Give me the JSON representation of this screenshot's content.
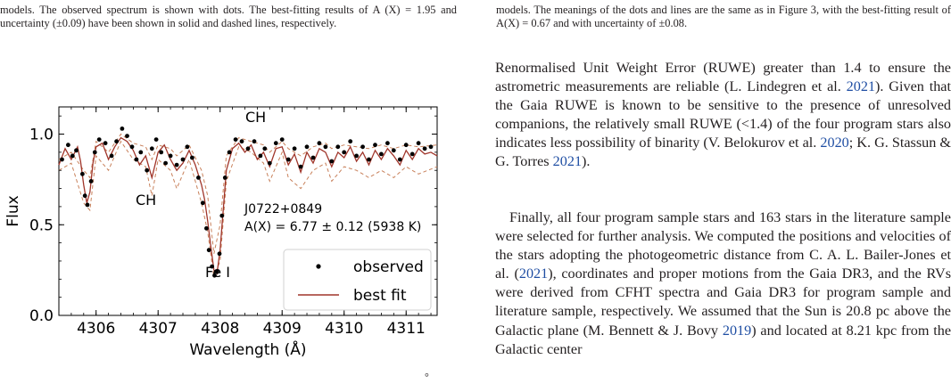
{
  "left_caption": "models. The observed spectrum is shown with dots. The best-fitting results of A (X) = 1.95 and uncertainty (±0.09) have been shown in solid and dashed lines, respectively.",
  "right_caption": "models. The meanings of the dots and lines are the same as in Figure 3, with the best-fitting result of A(X) = 0.67 and with uncertainty of ±0.08.",
  "paragraph1": {
    "t1": "Renormalised Unit Weight Error (RUWE) greater than 1.4 to ensure the astrometric measurements are reliable (L. Lindegren et al. ",
    "c1": "2021",
    "t2": "). Given that the Gaia RUWE is known to be sensitive to the presence of unresolved companions, the relatively small RUWE (<1.4) of the four program stars also indicates less possibility of binarity (V. Belokurov et al. ",
    "c2": "2020",
    "t3": "; K. G. Stassun & G. Torres ",
    "c3": "2021",
    "t4": ")."
  },
  "paragraph2": {
    "t1": "Finally, all four program sample stars and 163 stars in the literature sample were selected for further analysis. We computed the positions and velocities of the stars adopting the photogeometric distance from C. A. L. Bailer-Jones et al. (",
    "c1": "2021",
    "t2": "), coordinates and proper motions from the Gaia DR3, and the RVs were derived from CFHT spectra and Gaia DR3 for program sample and literature sample, respectively. We assumed that the Sun is 20.8 pc above the Galactic plane (M. Bennett & J. Bovy ",
    "c2": "2019",
    "t3": ") and located at 8.21 kpc from the Galactic center"
  },
  "stray_mark": "°",
  "chart_data": {
    "type": "line",
    "xlabel": "Wavelength (Å)",
    "ylabel": "Flux",
    "xlim": [
      4305.4,
      4311.5
    ],
    "ylim": [
      0.0,
      1.15
    ],
    "x_ticks": [
      "4306",
      "4307",
      "4308",
      "4309",
      "4310",
      "4311"
    ],
    "y_ticks": [
      "0.0",
      "0.5",
      "1.0"
    ],
    "grid": false,
    "legend_position": "bottom-right",
    "legend": [
      "observed",
      "best fit"
    ],
    "annotations": {
      "star": "J0722+0849",
      "abundance": "A(X) = 6.77 ± 0.12 (5938 K)",
      "label_ch_top": "CH",
      "label_ch_left": "CH",
      "label_fe": "Fe I"
    },
    "colors": {
      "observed": "#000000",
      "best_fit": "#a0352a",
      "uncertainty": "#c8805a"
    },
    "series": [
      {
        "name": "best fit",
        "x": [
          4305.4,
          4305.5,
          4305.6,
          4305.7,
          4305.75,
          4305.8,
          4305.85,
          4305.9,
          4305.95,
          4306.0,
          4306.1,
          4306.2,
          4306.3,
          4306.4,
          4306.5,
          4306.6,
          4306.7,
          4306.8,
          4306.9,
          4307.0,
          4307.1,
          4307.2,
          4307.3,
          4307.4,
          4307.5,
          4307.6,
          4307.7,
          4307.75,
          4307.8,
          4307.85,
          4307.9,
          4307.95,
          4308.0,
          4308.05,
          4308.1,
          4308.2,
          4308.3,
          4308.4,
          4308.5,
          4308.6,
          4308.7,
          4308.8,
          4308.9,
          4309.0,
          4309.1,
          4309.2,
          4309.3,
          4309.4,
          4309.5,
          4309.6,
          4309.7,
          4309.8,
          4309.9,
          4310.0,
          4310.1,
          4310.2,
          4310.3,
          4310.4,
          4310.5,
          4310.6,
          4310.7,
          4310.8,
          4310.9,
          4311.0,
          4311.1,
          4311.2,
          4311.3,
          4311.4,
          4311.5
        ],
        "y": [
          0.83,
          0.92,
          0.86,
          0.93,
          0.85,
          0.72,
          0.62,
          0.68,
          0.84,
          0.93,
          0.95,
          0.86,
          0.93,
          0.98,
          0.96,
          0.91,
          0.83,
          0.88,
          0.76,
          0.9,
          0.94,
          0.86,
          0.8,
          0.84,
          0.91,
          0.83,
          0.72,
          0.64,
          0.52,
          0.38,
          0.25,
          0.23,
          0.36,
          0.58,
          0.8,
          0.92,
          0.95,
          0.9,
          0.94,
          0.86,
          0.9,
          0.82,
          0.92,
          0.93,
          0.83,
          0.89,
          0.79,
          0.9,
          0.84,
          0.92,
          0.9,
          0.82,
          0.9,
          0.87,
          0.93,
          0.85,
          0.9,
          0.83,
          0.91,
          0.86,
          0.92,
          0.88,
          0.83,
          0.91,
          0.86,
          0.92,
          0.89,
          0.9,
          0.88
        ]
      },
      {
        "name": "observed",
        "x": [
          4305.45,
          4305.55,
          4305.62,
          4305.68,
          4305.78,
          4305.82,
          4305.86,
          4305.92,
          4305.98,
          4306.05,
          4306.15,
          4306.25,
          4306.33,
          4306.42,
          4306.5,
          4306.58,
          4306.65,
          4306.72,
          4306.82,
          4306.9,
          4306.97,
          4307.05,
          4307.12,
          4307.2,
          4307.3,
          4307.4,
          4307.47,
          4307.55,
          4307.65,
          4307.72,
          4307.78,
          4307.82,
          4307.87,
          4307.91,
          4307.95,
          4307.99,
          4308.03,
          4308.08,
          4308.15,
          4308.25,
          4308.35,
          4308.45,
          4308.55,
          4308.65,
          4308.72,
          4308.8,
          4308.9,
          4309.0,
          4309.1,
          4309.2,
          4309.3,
          4309.4,
          4309.5,
          4309.6,
          4309.7,
          4309.8,
          4309.9,
          4310.0,
          4310.1,
          4310.2,
          4310.3,
          4310.4,
          4310.5,
          4310.6,
          4310.7,
          4310.8,
          4310.9,
          4311.0,
          4311.1,
          4311.2,
          4311.3,
          4311.4
        ],
        "y": [
          0.86,
          0.94,
          0.88,
          0.91,
          0.78,
          0.66,
          0.61,
          0.74,
          0.9,
          0.97,
          0.95,
          0.88,
          0.96,
          1.03,
          0.99,
          0.93,
          0.86,
          0.9,
          0.8,
          0.92,
          0.97,
          0.9,
          0.84,
          0.88,
          0.83,
          0.86,
          0.93,
          0.87,
          0.76,
          0.62,
          0.48,
          0.36,
          0.27,
          0.22,
          0.24,
          0.34,
          0.55,
          0.76,
          0.9,
          0.97,
          0.96,
          0.92,
          0.96,
          0.88,
          0.92,
          0.84,
          0.95,
          0.97,
          0.86,
          0.92,
          0.82,
          0.93,
          0.87,
          0.95,
          0.93,
          0.85,
          0.93,
          0.9,
          0.96,
          0.88,
          0.93,
          0.86,
          0.94,
          0.89,
          0.95,
          0.91,
          0.86,
          0.94,
          0.89,
          0.95,
          0.92,
          0.93
        ]
      },
      {
        "name": "",
        "x": [
          4305.4,
          4305.6,
          4305.8,
          4305.9,
          4306.0,
          4306.2,
          4306.4,
          4306.6,
          4306.8,
          4306.9,
          4307.0,
          4307.2,
          4307.3,
          4307.5,
          4307.7,
          4307.8,
          4307.9,
          4308.0,
          4308.1,
          4308.3,
          4308.5,
          4308.7,
          4308.8,
          4309.0,
          4309.1,
          4309.3,
          4309.5,
          4309.7,
          4309.8,
          4310.0,
          4310.2,
          4310.4,
          4310.6,
          4310.8,
          4311.0,
          4311.2,
          4311.5
        ],
        "y": [
          0.8,
          0.84,
          0.62,
          0.58,
          0.88,
          0.8,
          0.96,
          0.86,
          0.82,
          0.66,
          0.86,
          0.8,
          0.7,
          0.86,
          0.62,
          0.46,
          0.21,
          0.3,
          0.74,
          0.93,
          0.9,
          0.84,
          0.74,
          0.9,
          0.76,
          0.7,
          0.8,
          0.84,
          0.74,
          0.82,
          0.8,
          0.76,
          0.8,
          0.76,
          0.82,
          0.78,
          0.82
        ]
      },
      {
        "name": "",
        "x": [
          4305.4,
          4305.6,
          4305.8,
          4305.9,
          4306.0,
          4306.2,
          4306.4,
          4306.6,
          4306.8,
          4306.9,
          4307.0,
          4307.2,
          4307.3,
          4307.5,
          4307.7,
          4307.8,
          4307.9,
          4308.0,
          4308.1,
          4308.3,
          4308.5,
          4308.7,
          4308.8,
          4309.0,
          4309.1,
          4309.3,
          4309.5,
          4309.7,
          4309.8,
          4310.0,
          4310.2,
          4310.4,
          4310.6,
          4310.8,
          4311.0,
          4311.2,
          4311.5
        ],
        "y": [
          0.86,
          0.9,
          0.8,
          0.76,
          0.96,
          0.9,
          1.0,
          0.95,
          0.93,
          0.86,
          0.94,
          0.92,
          0.88,
          0.94,
          0.8,
          0.66,
          0.34,
          0.5,
          0.88,
          0.98,
          0.96,
          0.94,
          0.9,
          0.96,
          0.92,
          0.88,
          0.93,
          0.95,
          0.92,
          0.94,
          0.93,
          0.92,
          0.94,
          0.92,
          0.94,
          0.93,
          0.94
        ]
      }
    ]
  }
}
